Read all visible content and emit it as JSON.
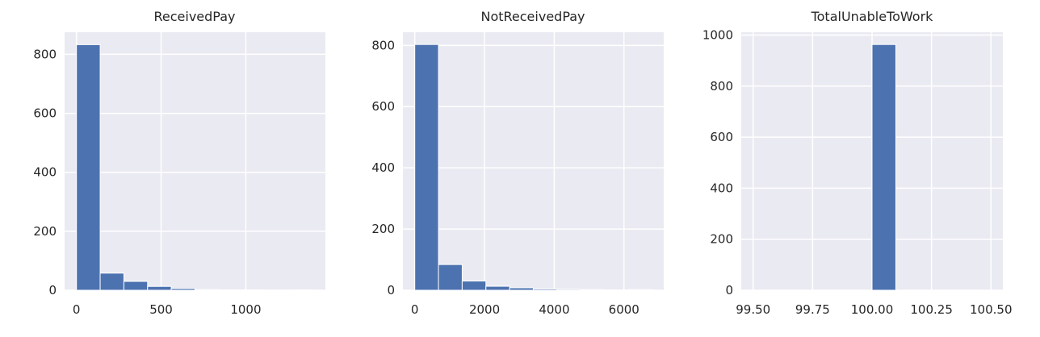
{
  "chart_data": [
    {
      "type": "bar",
      "title": "ReceivedPay",
      "xlabel": "",
      "ylabel": "",
      "bin_edges": [
        0,
        140,
        280,
        420,
        560,
        700,
        840,
        980,
        1120,
        1260,
        1400
      ],
      "values": [
        833,
        58,
        30,
        13,
        6,
        2,
        1,
        1,
        0,
        1
      ],
      "xlim": [
        -70,
        1470
      ],
      "ylim": [
        0,
        875
      ],
      "x_ticks": [
        0,
        500,
        1000
      ],
      "x_tick_labels": [
        "0",
        "500",
        "1000"
      ],
      "y_ticks": [
        0,
        200,
        400,
        600,
        800
      ],
      "y_tick_labels": [
        "0",
        "200",
        "400",
        "600",
        "800"
      ],
      "grid": true,
      "bar_color": "#4c72b0",
      "background_color": "#eaeaf2"
    },
    {
      "type": "bar",
      "title": "NotReceivedPay",
      "xlabel": "",
      "ylabel": "",
      "bin_edges": [
        0,
        680,
        1360,
        2040,
        2720,
        3400,
        4080,
        4760,
        5440,
        6120,
        6800
      ],
      "values": [
        803,
        84,
        30,
        13,
        8,
        4,
        3,
        2,
        1,
        2
      ],
      "xlim": [
        -340,
        7140
      ],
      "ylim": [
        0,
        843
      ],
      "x_ticks": [
        0,
        2000,
        4000,
        6000
      ],
      "x_tick_labels": [
        "0",
        "2000",
        "4000",
        "6000"
      ],
      "y_ticks": [
        0,
        200,
        400,
        600,
        800
      ],
      "y_tick_labels": [
        "0",
        "200",
        "400",
        "600",
        "800"
      ],
      "grid": true,
      "bar_color": "#4c72b0",
      "background_color": "#eaeaf2"
    },
    {
      "type": "bar",
      "title": "TotalUnableToWork",
      "xlabel": "",
      "ylabel": "",
      "bin_edges": [
        99.5,
        99.6,
        99.7,
        99.8,
        99.9,
        100.0,
        100.1,
        100.2,
        100.3,
        100.4,
        100.5
      ],
      "values": [
        0,
        0,
        0,
        0,
        0,
        963,
        0,
        0,
        0,
        0
      ],
      "xlim": [
        99.45,
        100.55
      ],
      "ylim": [
        0,
        1011
      ],
      "x_ticks": [
        99.5,
        99.75,
        100.0,
        100.25,
        100.5
      ],
      "x_tick_labels": [
        "99.50",
        "99.75",
        "100.00",
        "100.25",
        "100.50"
      ],
      "y_ticks": [
        0,
        200,
        400,
        600,
        800,
        1000
      ],
      "y_tick_labels": [
        "0",
        "200",
        "400",
        "600",
        "800",
        "1000"
      ],
      "grid": true,
      "bar_color": "#4c72b0",
      "background_color": "#eaeaf2"
    }
  ]
}
